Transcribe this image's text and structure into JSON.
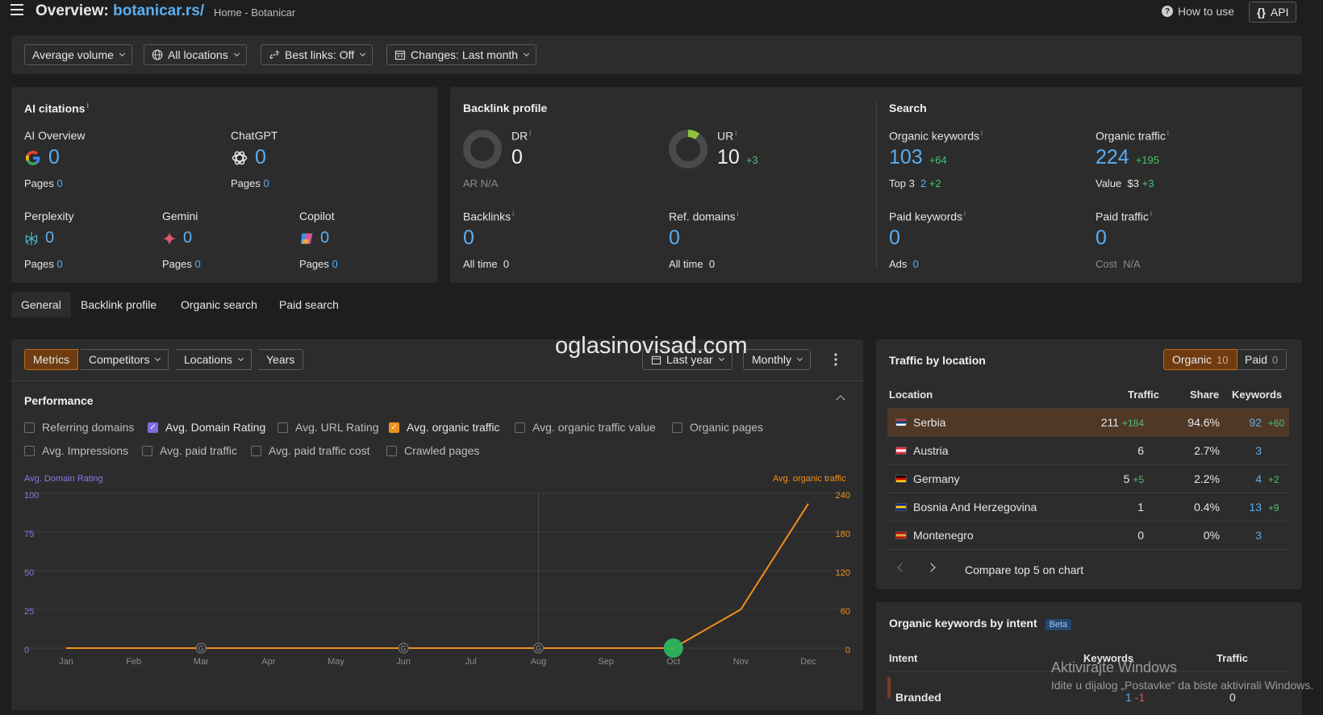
{
  "header": {
    "title_prefix": "Overview:",
    "domain": "botanicar.rs/",
    "breadcrumb": "Home - Botanicar",
    "how_to_use": "How to use",
    "api": "API"
  },
  "filters": [
    "Average volume",
    "All locations",
    "Best links: Off",
    "Changes: Last month"
  ],
  "ai_citations": {
    "title": "AI citations",
    "items": [
      {
        "name": "AI Overview",
        "value": "0",
        "pages_label": "Pages",
        "pages": "0",
        "icon": "google-icon"
      },
      {
        "name": "ChatGPT",
        "value": "0",
        "pages_label": "Pages",
        "pages": "0",
        "icon": "chatgpt-icon"
      },
      {
        "name": "Perplexity",
        "value": "0",
        "pages_label": "Pages",
        "pages": "0",
        "icon": "perplexity-icon"
      },
      {
        "name": "Gemini",
        "value": "0",
        "pages_label": "Pages",
        "pages": "0",
        "icon": "gemini-icon"
      },
      {
        "name": "Copilot",
        "value": "0",
        "pages_label": "Pages",
        "pages": "0",
        "icon": "copilot-icon"
      }
    ]
  },
  "backlink_profile": {
    "title": "Backlink profile",
    "dr": {
      "label": "DR",
      "value": "0",
      "sub": "AR",
      "sub_value": "N/A"
    },
    "ur": {
      "label": "UR",
      "value": "10",
      "delta": "+3"
    },
    "backlinks": {
      "label": "Backlinks",
      "value": "0",
      "sub": "All time",
      "sub_value": "0"
    },
    "ref_domains": {
      "label": "Ref. domains",
      "value": "0",
      "sub": "All time",
      "sub_value": "0"
    }
  },
  "search": {
    "title": "Search",
    "organic_keywords": {
      "label": "Organic keywords",
      "value": "103",
      "delta": "+64",
      "sub": "Top 3",
      "sub_value": "2",
      "sub_delta": "+2"
    },
    "organic_traffic": {
      "label": "Organic traffic",
      "value": "224",
      "delta": "+195",
      "sub": "Value",
      "sub_value": "$3",
      "sub_delta": "+3"
    },
    "paid_keywords": {
      "label": "Paid keywords",
      "value": "0",
      "sub": "Ads",
      "sub_value": "0"
    },
    "paid_traffic": {
      "label": "Paid traffic",
      "value": "0",
      "sub": "Cost",
      "sub_value": "N/A"
    }
  },
  "tabs": [
    "General",
    "Backlink profile",
    "Organic search",
    "Paid search"
  ],
  "chart_toolbar": {
    "segments": [
      "Metrics",
      "Competitors",
      "Locations",
      "Years"
    ],
    "range": "Last year",
    "interval": "Monthly"
  },
  "performance": {
    "title": "Performance",
    "checkboxes": [
      {
        "label": "Referring domains",
        "checked": false
      },
      {
        "label": "Avg. Domain Rating",
        "checked": true
      },
      {
        "label": "Avg. URL Rating",
        "checked": false
      },
      {
        "label": "Avg. organic traffic",
        "checked": true
      },
      {
        "label": "Avg. organic traffic value",
        "checked": false
      },
      {
        "label": "Organic pages",
        "checked": false
      },
      {
        "label": "Avg. Impressions",
        "checked": false
      },
      {
        "label": "Avg. paid traffic",
        "checked": false
      },
      {
        "label": "Avg. paid traffic cost",
        "checked": false
      },
      {
        "label": "Crawled pages",
        "checked": false
      }
    ]
  },
  "chart_data": {
    "type": "line",
    "x": [
      "Jan",
      "Feb",
      "Mar",
      "Apr",
      "May",
      "Jun",
      "Jul",
      "Aug",
      "Sep",
      "Oct",
      "Nov",
      "Dec"
    ],
    "series": [
      {
        "name": "Avg. Domain Rating",
        "axis": "left",
        "color": "#7f6be2",
        "values": [
          0,
          0,
          0,
          0,
          0,
          0,
          0,
          0,
          0,
          0,
          0,
          0
        ]
      },
      {
        "name": "Avg. organic traffic",
        "axis": "right",
        "color": "#f0901c",
        "values": [
          0,
          0,
          0,
          0,
          0,
          0,
          0,
          0,
          0,
          0,
          60,
          224
        ]
      }
    ],
    "left_axis": {
      "label": "Avg. Domain Rating",
      "ticks": [
        "100",
        "75",
        "50",
        "25",
        "0"
      ],
      "range": [
        0,
        100
      ]
    },
    "right_axis": {
      "label": "Avg. organic traffic",
      "ticks": [
        "240",
        "180",
        "120",
        "60",
        "0"
      ],
      "range": [
        0,
        240
      ]
    },
    "event_markers": [
      {
        "x": "Mar",
        "label": "G"
      },
      {
        "x": "Jun",
        "label": "G"
      },
      {
        "x": "Aug",
        "label": "G"
      }
    ],
    "highlight_x": "Oct",
    "grid": true
  },
  "traffic_by_location": {
    "title": "Traffic by location",
    "toggle": [
      {
        "label": "Organic",
        "count": "10"
      },
      {
        "label": "Paid",
        "count": "0"
      }
    ],
    "columns": [
      "Location",
      "Traffic",
      "Share",
      "Keywords"
    ],
    "rows": [
      {
        "location": "Serbia",
        "traffic": "211",
        "traffic_delta": "+184",
        "share": "94.6%",
        "keywords": "92",
        "kw_delta": "+60",
        "share_value": 94.6
      },
      {
        "location": "Austria",
        "traffic": "6",
        "traffic_delta": "",
        "share": "2.7%",
        "keywords": "3",
        "kw_delta": "",
        "share_value": 2.7
      },
      {
        "location": "Germany",
        "traffic": "5",
        "traffic_delta": "+5",
        "share": "2.2%",
        "keywords": "4",
        "kw_delta": "+2",
        "share_value": 2.2
      },
      {
        "location": "Bosnia And Herzegovina",
        "traffic": "1",
        "traffic_delta": "",
        "share": "0.4%",
        "keywords": "13",
        "kw_delta": "+9",
        "share_value": 0.4
      },
      {
        "location": "Montenegro",
        "traffic": "0",
        "traffic_delta": "",
        "share": "0%",
        "keywords": "3",
        "kw_delta": "",
        "share_value": 0
      }
    ],
    "compare": "Compare top 5 on chart"
  },
  "keywords_by_intent": {
    "title": "Organic keywords by intent",
    "badge": "Beta",
    "columns": [
      "Intent",
      "Keywords",
      "Traffic"
    ],
    "first_row": {
      "intent": "Branded",
      "keywords": "1",
      "kw_delta": "-1",
      "traffic": "0"
    }
  },
  "overlays": {
    "watermark": "oglasinovisad.com",
    "windows_line1": "Aktivirajte Windows",
    "windows_line2": "Idite u dijalog „Postavke“ da biste aktivirali Windows."
  }
}
